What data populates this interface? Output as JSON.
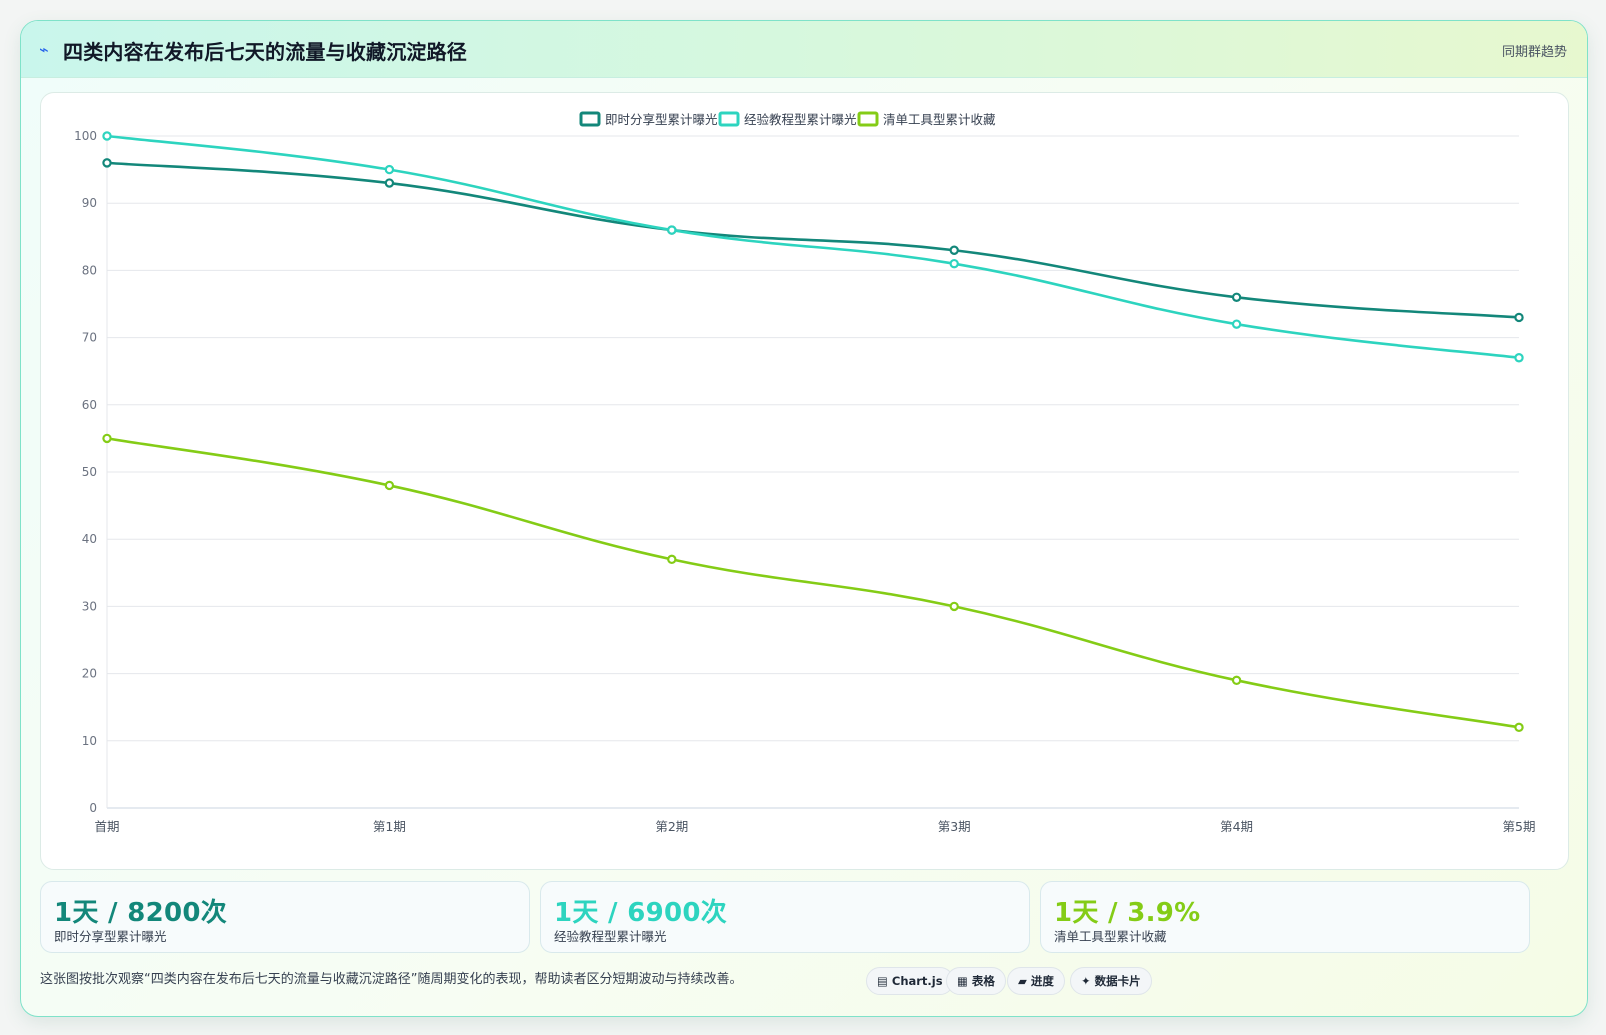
{
  "header": {
    "icon": "lightning-icon",
    "title": "四类内容在发布后七天的流量与收藏沉淀路径",
    "link_label": "同期群趋势"
  },
  "chart_data": {
    "type": "line",
    "title": "",
    "xlabel": "",
    "ylabel": "",
    "categories": [
      "首期",
      "第1期",
      "第2期",
      "第3期",
      "第4期",
      "第5期"
    ],
    "ylim": [
      0,
      100
    ],
    "yticks": [
      0,
      10,
      20,
      30,
      40,
      50,
      60,
      70,
      80,
      90,
      100
    ],
    "grid": true,
    "legend_position": "top-center",
    "series": [
      {
        "name": "即时分享型累计曝光",
        "color": "#13877a",
        "values": [
          96,
          93,
          86,
          83,
          76,
          73
        ]
      },
      {
        "name": "经验教程型累计曝光",
        "color": "#2dd4bf",
        "values": [
          100,
          95,
          86,
          81,
          72,
          67
        ]
      },
      {
        "name": "清单工具型累计收藏",
        "color": "#84cc16",
        "values": [
          55,
          48,
          37,
          30,
          19,
          12
        ]
      }
    ]
  },
  "kpis": [
    {
      "value": "1天 / 8200次",
      "label": "即时分享型累计曝光",
      "color": "#13877a"
    },
    {
      "value": "1天 / 6900次",
      "label": "经验教程型累计曝光",
      "color": "#2dd4bf"
    },
    {
      "value": "1天 / 3.9%",
      "label": "清单工具型累计收藏",
      "color": "#84cc16"
    }
  ],
  "footer": {
    "note": "这张图按批次观察“四类内容在发布后七天的流量与收藏沉淀路径”随周期变化的表现，帮助读者区分短期波动与持续改善。",
    "chips": [
      {
        "icon": "chart-icon",
        "label": "Chart.js"
      },
      {
        "icon": "table-icon",
        "label": "表格"
      },
      {
        "icon": "progress-icon",
        "label": "进度"
      },
      {
        "icon": "sparkle-icon",
        "label": "数据卡片"
      }
    ]
  }
}
